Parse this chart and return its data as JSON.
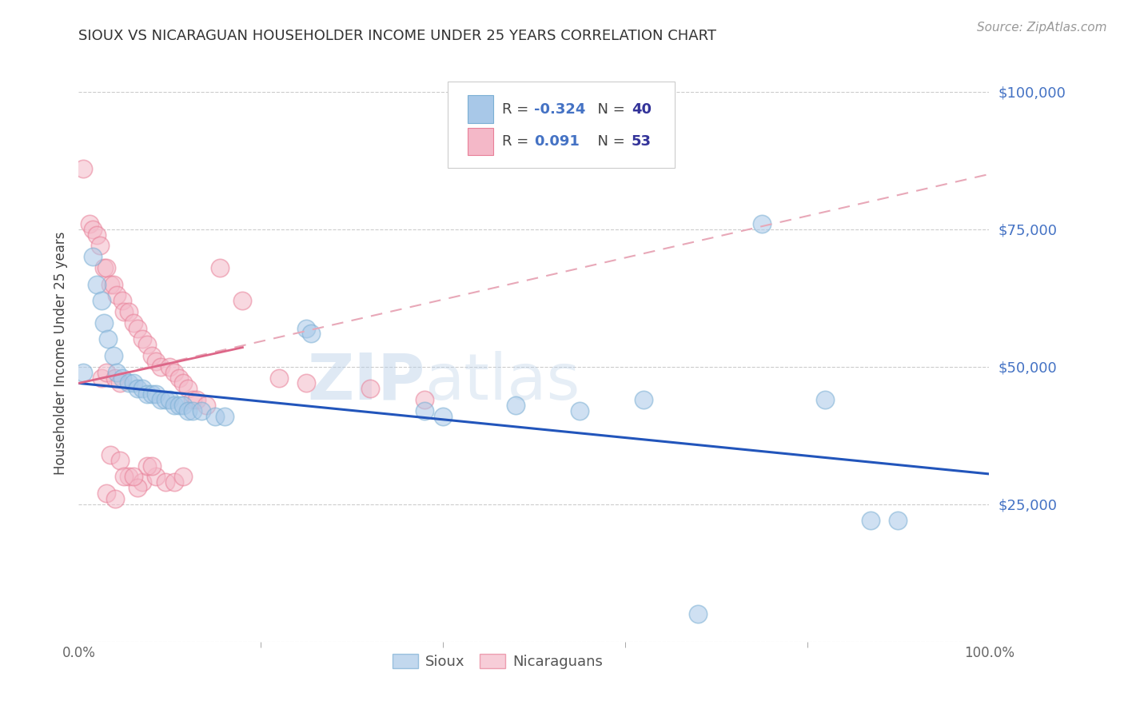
{
  "title": "SIOUX VS NICARAGUAN HOUSEHOLDER INCOME UNDER 25 YEARS CORRELATION CHART",
  "source": "Source: ZipAtlas.com",
  "ylabel": "Householder Income Under 25 years",
  "watermark": "ZIPatlas",
  "sioux_color": "#a8c8e8",
  "sioux_edge_color": "#7bafd4",
  "nicaraguan_color": "#f4b8c8",
  "nicaraguan_edge_color": "#e88098",
  "sioux_line_color": "#2255bb",
  "nicaraguan_line_solid_color": "#dd6688",
  "nicaraguan_line_dash_color": "#e8a8b8",
  "background_color": "#ffffff",
  "grid_color": "#cccccc",
  "title_color": "#333333",
  "ytick_color": "#4472c4",
  "source_color": "#999999",
  "legend_r_color": "#4472c4",
  "legend_n_color": "#333399",
  "sioux_trend": [
    0,
    47000,
    100,
    30500
  ],
  "nicaraguan_trend_solid": [
    0,
    47000,
    18,
    53500
  ],
  "nicaraguan_trend_dashed": [
    0,
    47000,
    100,
    85000
  ],
  "sioux_points": [
    [
      0.5,
      49000
    ],
    [
      1.5,
      70000
    ],
    [
      2.0,
      65000
    ],
    [
      2.5,
      62000
    ],
    [
      2.8,
      58000
    ],
    [
      3.2,
      55000
    ],
    [
      3.8,
      52000
    ],
    [
      4.2,
      49000
    ],
    [
      4.8,
      48000
    ],
    [
      5.5,
      47000
    ],
    [
      6.0,
      47000
    ],
    [
      6.5,
      46000
    ],
    [
      7.0,
      46000
    ],
    [
      7.5,
      45000
    ],
    [
      8.0,
      45000
    ],
    [
      8.5,
      45000
    ],
    [
      9.0,
      44000
    ],
    [
      9.5,
      44000
    ],
    [
      10.0,
      44000
    ],
    [
      10.5,
      43000
    ],
    [
      11.0,
      43000
    ],
    [
      11.5,
      43000
    ],
    [
      12.0,
      42000
    ],
    [
      12.5,
      42000
    ],
    [
      13.5,
      42000
    ],
    [
      15.0,
      41000
    ],
    [
      16.0,
      41000
    ],
    [
      25.0,
      57000
    ],
    [
      25.5,
      56000
    ],
    [
      38.0,
      42000
    ],
    [
      40.0,
      41000
    ],
    [
      48.0,
      43000
    ],
    [
      55.0,
      42000
    ],
    [
      62.0,
      44000
    ],
    [
      75.0,
      76000
    ],
    [
      82.0,
      44000
    ],
    [
      87.0,
      22000
    ],
    [
      90.0,
      22000
    ],
    [
      68.0,
      5000
    ]
  ],
  "nicaraguan_points": [
    [
      0.5,
      86000
    ],
    [
      1.2,
      76000
    ],
    [
      1.5,
      75000
    ],
    [
      2.0,
      74000
    ],
    [
      2.3,
      72000
    ],
    [
      2.8,
      68000
    ],
    [
      3.0,
      68000
    ],
    [
      3.5,
      65000
    ],
    [
      3.8,
      65000
    ],
    [
      4.2,
      63000
    ],
    [
      4.8,
      62000
    ],
    [
      5.0,
      60000
    ],
    [
      5.5,
      60000
    ],
    [
      6.0,
      58000
    ],
    [
      6.5,
      57000
    ],
    [
      7.0,
      55000
    ],
    [
      7.5,
      54000
    ],
    [
      8.0,
      52000
    ],
    [
      8.5,
      51000
    ],
    [
      9.0,
      50000
    ],
    [
      10.0,
      50000
    ],
    [
      10.5,
      49000
    ],
    [
      11.0,
      48000
    ],
    [
      11.5,
      47000
    ],
    [
      12.0,
      46000
    ],
    [
      12.5,
      44000
    ],
    [
      13.0,
      44000
    ],
    [
      14.0,
      43000
    ],
    [
      15.5,
      68000
    ],
    [
      18.0,
      62000
    ],
    [
      22.0,
      48000
    ],
    [
      25.0,
      47000
    ],
    [
      32.0,
      46000
    ],
    [
      38.0,
      44000
    ],
    [
      5.5,
      30000
    ],
    [
      7.0,
      29000
    ],
    [
      8.5,
      30000
    ],
    [
      9.5,
      29000
    ],
    [
      10.5,
      29000
    ],
    [
      11.5,
      30000
    ],
    [
      7.5,
      32000
    ],
    [
      8.0,
      32000
    ],
    [
      3.5,
      34000
    ],
    [
      4.5,
      33000
    ],
    [
      6.5,
      28000
    ],
    [
      3.0,
      27000
    ],
    [
      4.0,
      26000
    ],
    [
      5.0,
      30000
    ],
    [
      6.0,
      30000
    ],
    [
      2.5,
      48000
    ],
    [
      3.0,
      49000
    ],
    [
      4.0,
      48000
    ],
    [
      4.5,
      47000
    ]
  ],
  "xlim": [
    0,
    100
  ],
  "ylim": [
    0,
    105000
  ]
}
